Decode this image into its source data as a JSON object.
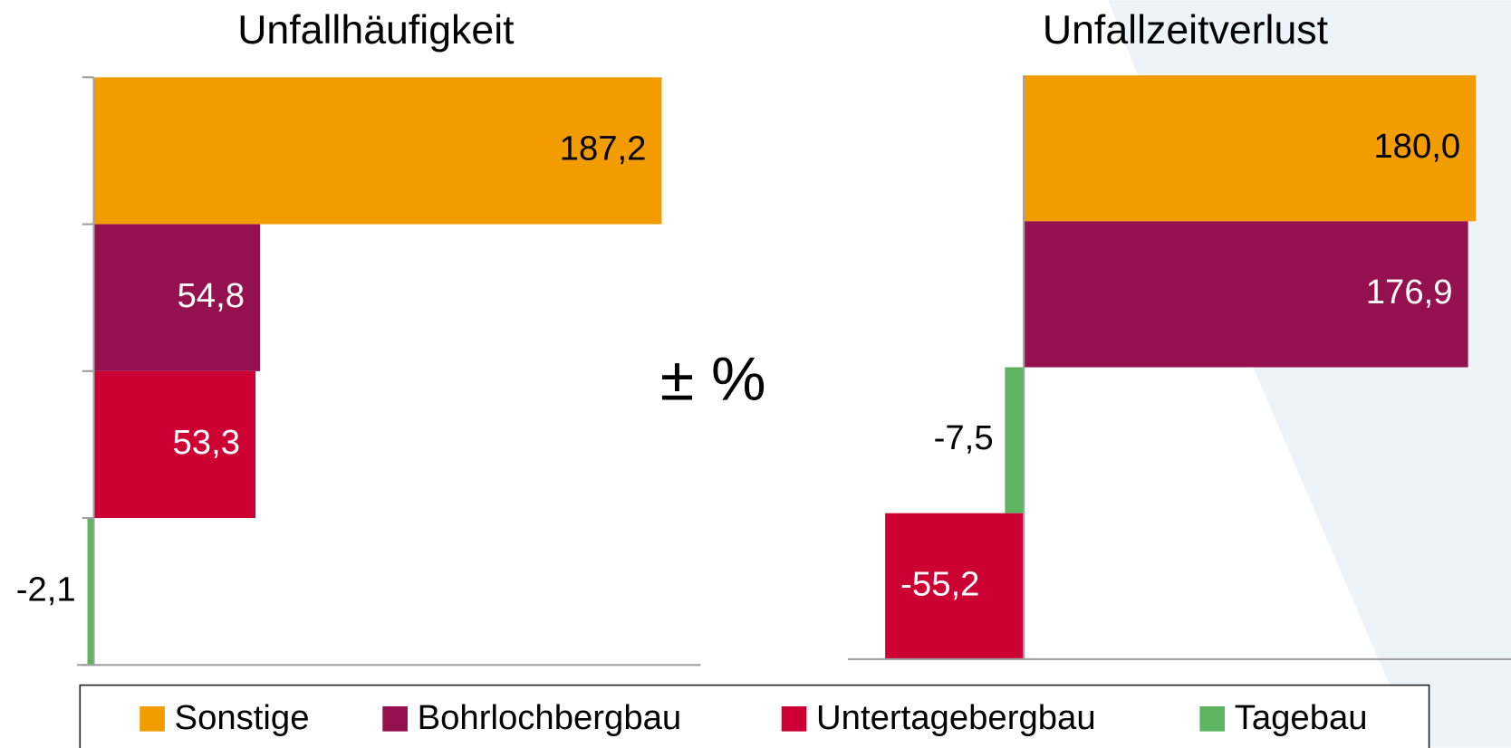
{
  "annotation": "± %",
  "legend": {
    "items": [
      {
        "name": "Sonstige",
        "color": "#f39c00"
      },
      {
        "name": "Bohrlochbergbau",
        "color": "#95104f"
      },
      {
        "name": "Untertagebergbau",
        "color": "#cc0033"
      },
      {
        "name": "Tagebau",
        "color": "#5cb460"
      }
    ]
  },
  "chart_data": [
    {
      "type": "bar",
      "orientation": "horizontal",
      "title": "Unfallhäufigkeit",
      "values": [
        187.2,
        54.8,
        53.3,
        -2.1
      ],
      "value_labels": [
        "187,2",
        "54,8",
        "53,3",
        "-2,1"
      ],
      "colors": [
        "#f39c00",
        "#95104f",
        "#cc0033",
        "#5cb460"
      ],
      "xlim": [
        -5.5,
        200
      ]
    },
    {
      "type": "bar",
      "orientation": "horizontal",
      "title": "Unfallzeitverlust",
      "values": [
        180.0,
        176.9,
        -7.5,
        -55.2
      ],
      "value_labels": [
        "180,0",
        "176,9",
        "-7,5",
        "-55,2"
      ],
      "colors": [
        "#f39c00",
        "#95104f",
        "#5cb460",
        "#cc0033"
      ],
      "xlim": [
        -70,
        194
      ]
    }
  ]
}
